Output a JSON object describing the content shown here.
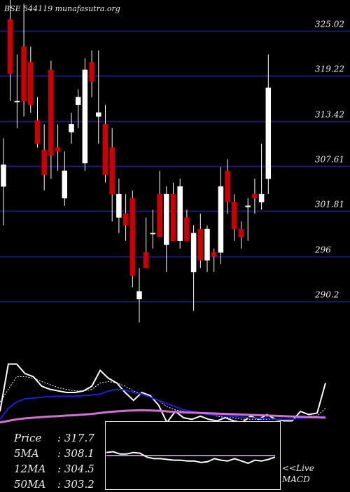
{
  "title_text": "BSE 544119 munafasutra.org",
  "colors": {
    "background": "#000000",
    "grid": "#1a1a70",
    "up_candle": "#ffffff",
    "down_candle": "#cc0000",
    "price_line": "#ffffff",
    "ma5_line": "#ffffff",
    "ma12_line": "#1f1fd0",
    "ma50_line": "#d070d0",
    "macd_line": "#ffffff",
    "macd_signal": "#d070d0"
  },
  "chart_data": {
    "type": "candlestick",
    "ylim": [
      287.5,
      329
    ],
    "y_ticks": [
      "325.02",
      "319.22",
      "313.42",
      "307.61",
      "301.81",
      "296",
      "290.2"
    ],
    "y_tick_values": [
      325.02,
      319.22,
      313.42,
      307.61,
      301.81,
      296,
      290.2
    ],
    "candles": [
      {
        "o": 305.0,
        "h": 311.2,
        "l": 300.0,
        "c": 307.8
      },
      {
        "o": 326.5,
        "h": 329.0,
        "l": 316.0,
        "c": 319.5
      },
      {
        "o": 316.0,
        "h": 322.0,
        "l": 312.5,
        "c": 316.0
      },
      {
        "o": 323.0,
        "h": 328.5,
        "l": 314.0,
        "c": 316.0
      },
      {
        "o": 321.0,
        "h": 323.0,
        "l": 314.5,
        "c": 315.5
      },
      {
        "o": 313.5,
        "h": 316.5,
        "l": 310.0,
        "c": 310.5
      },
      {
        "o": 309.7,
        "h": 313.0,
        "l": 304.5,
        "c": 306.5
      },
      {
        "o": 320.0,
        "h": 321.2,
        "l": 306.0,
        "c": 309.0
      },
      {
        "o": 310.0,
        "h": 313.0,
        "l": 307.0,
        "c": 309.5
      },
      {
        "o": 303.5,
        "h": 309.5,
        "l": 302.5,
        "c": 307.0
      },
      {
        "o": 312.0,
        "h": 314.5,
        "l": 310.5,
        "c": 313.0
      },
      {
        "o": 315.5,
        "h": 317.5,
        "l": 312.5,
        "c": 316.5
      },
      {
        "o": 308.0,
        "h": 321.5,
        "l": 307.0,
        "c": 320.0
      },
      {
        "o": 321.0,
        "h": 322.5,
        "l": 316.5,
        "c": 318.5
      },
      {
        "o": 314.0,
        "h": 322.5,
        "l": 310.5,
        "c": 314.5
      },
      {
        "o": 313.0,
        "h": 315.5,
        "l": 305.5,
        "c": 306.5
      },
      {
        "o": 310.0,
        "h": 312.5,
        "l": 300.5,
        "c": 304.0
      },
      {
        "o": 301.0,
        "h": 306.0,
        "l": 299.0,
        "c": 304.0
      },
      {
        "o": 301.5,
        "h": 304.0,
        "l": 298.0,
        "c": 300.0
      },
      {
        "o": 303.5,
        "h": 304.5,
        "l": 292.0,
        "c": 293.5
      },
      {
        "o": 290.5,
        "h": 294.5,
        "l": 287.5,
        "c": 291.5
      },
      {
        "o": 296.5,
        "h": 301.0,
        "l": 294.5,
        "c": 294.5
      },
      {
        "o": 299.0,
        "h": 302.0,
        "l": 297.0,
        "c": 299.0
      },
      {
        "o": 304.0,
        "h": 307.0,
        "l": 298.5,
        "c": 298.5
      },
      {
        "o": 297.5,
        "h": 305.0,
        "l": 294.0,
        "c": 304.0
      },
      {
        "o": 304.0,
        "h": 305.5,
        "l": 298.0,
        "c": 298.0
      },
      {
        "o": 298.0,
        "h": 306.0,
        "l": 297.0,
        "c": 305.0
      },
      {
        "o": 301.0,
        "h": 302.0,
        "l": 298.0,
        "c": 298.0
      },
      {
        "o": 294.0,
        "h": 300.0,
        "l": 289.0,
        "c": 299.0
      },
      {
        "o": 299.5,
        "h": 301.5,
        "l": 294.5,
        "c": 295.5
      },
      {
        "o": 295.5,
        "h": 300.0,
        "l": 294.0,
        "c": 299.5
      },
      {
        "o": 296.5,
        "h": 297.0,
        "l": 294.0,
        "c": 296.0
      },
      {
        "o": 296.5,
        "h": 307.5,
        "l": 295.0,
        "c": 305.0
      },
      {
        "o": 307.0,
        "h": 308.5,
        "l": 301.5,
        "c": 303.0
      },
      {
        "o": 303.0,
        "h": 304.0,
        "l": 298.0,
        "c": 299.5
      },
      {
        "o": 299.5,
        "h": 300.5,
        "l": 297.0,
        "c": 298.5
      },
      {
        "o": 302.5,
        "h": 303.5,
        "l": 298.0,
        "c": 302.5
      },
      {
        "o": 304.0,
        "h": 306.0,
        "l": 301.5,
        "c": 303.5
      },
      {
        "o": 303.0,
        "h": 310.5,
        "l": 302.0,
        "c": 304.0
      },
      {
        "o": 306.0,
        "h": 322.0,
        "l": 304.0,
        "c": 317.7
      }
    ],
    "indicator_panel": {
      "series": [
        {
          "values": [
            -0.6,
            0.9,
            0.9,
            0.6,
            0.5,
            0.2,
            0.1,
            0.05,
            0.0,
            0.0,
            0.05,
            0.2,
            0.7,
            0.45,
            0.3,
            0.0,
            -0.25,
            0.0,
            -0.1,
            -0.4,
            -0.95,
            -0.6,
            -0.8,
            -0.85,
            -0.75,
            -0.85,
            -0.9,
            -0.8,
            -0.9,
            -0.95,
            -0.75,
            -0.85,
            -0.7,
            -0.85,
            -0.9,
            -0.9,
            -0.6,
            -0.7,
            -0.65,
            0.3
          ]
        },
        {
          "values": [
            -0.3,
            0.1,
            0.5,
            0.5,
            0.45,
            0.35,
            0.25,
            0.15,
            0.1,
            0.05,
            0.05,
            0.1,
            0.3,
            0.35,
            0.3,
            0.2,
            0.05,
            -0.05,
            -0.15,
            -0.25,
            -0.45,
            -0.55,
            -0.6,
            -0.65,
            -0.65,
            -0.7,
            -0.75,
            -0.8,
            -0.8,
            -0.85,
            -0.85,
            -0.85,
            -0.85,
            -0.85,
            -0.85,
            -0.85,
            -0.8,
            -0.75,
            -0.75,
            -0.5
          ]
        },
        {
          "values": [
            -0.85,
            -0.5,
            -0.3,
            -0.2,
            -0.18,
            -0.15,
            -0.13,
            -0.12,
            -0.12,
            -0.12,
            -0.1,
            -0.08,
            -0.05,
            0.05,
            0.1,
            0.08,
            0.0,
            -0.05,
            -0.15,
            -0.25,
            -0.35,
            -0.45,
            -0.55,
            -0.6,
            -0.65,
            -0.7,
            -0.72,
            -0.75,
            -0.75,
            -0.78,
            -0.8,
            -0.82,
            -0.82,
            -0.85,
            -0.85,
            -0.85,
            -0.82,
            -0.8,
            -0.78,
            -0.75
          ]
        },
        {
          "values": [
            -0.95,
            -0.9,
            -0.85,
            -0.82,
            -0.8,
            -0.78,
            -0.76,
            -0.75,
            -0.73,
            -0.72,
            -0.7,
            -0.68,
            -0.65,
            -0.62,
            -0.6,
            -0.58,
            -0.57,
            -0.56,
            -0.57,
            -0.58,
            -0.6,
            -0.62,
            -0.63,
            -0.64,
            -0.65,
            -0.66,
            -0.67,
            -0.68,
            -0.69,
            -0.7,
            -0.71,
            -0.72,
            -0.73,
            -0.74,
            -0.75,
            -0.76,
            -0.77,
            -0.78,
            -0.79,
            -0.8
          ]
        }
      ]
    },
    "macd": {
      "macd": [
        0.2,
        0.25,
        0.1,
        0.1,
        0.2,
        0.15,
        -0.1,
        -0.2,
        -0.2,
        -0.25,
        -0.3,
        -0.3,
        -0.35,
        -0.35,
        -0.45,
        -0.4,
        -0.2,
        -0.3,
        -0.35,
        -0.2,
        -0.35,
        -0.5,
        -0.3,
        -0.35,
        -0.25,
        -0.1
      ],
      "signal": [
        0,
        0,
        0,
        0,
        0,
        0,
        0,
        0,
        0,
        0,
        0,
        0,
        0,
        0,
        0,
        0,
        0,
        0,
        0,
        0,
        0,
        0,
        0,
        0,
        0,
        0
      ]
    }
  },
  "stats": [
    {
      "label": "Price",
      "value": ": 317.7"
    },
    {
      "label": "5MA",
      "value": ": 308.1"
    },
    {
      "label": "12MA",
      "value": ": 304.5"
    },
    {
      "label": "50MA",
      "value": ": 303.2"
    }
  ],
  "macd_label": [
    "<<Live",
    "MACD"
  ]
}
